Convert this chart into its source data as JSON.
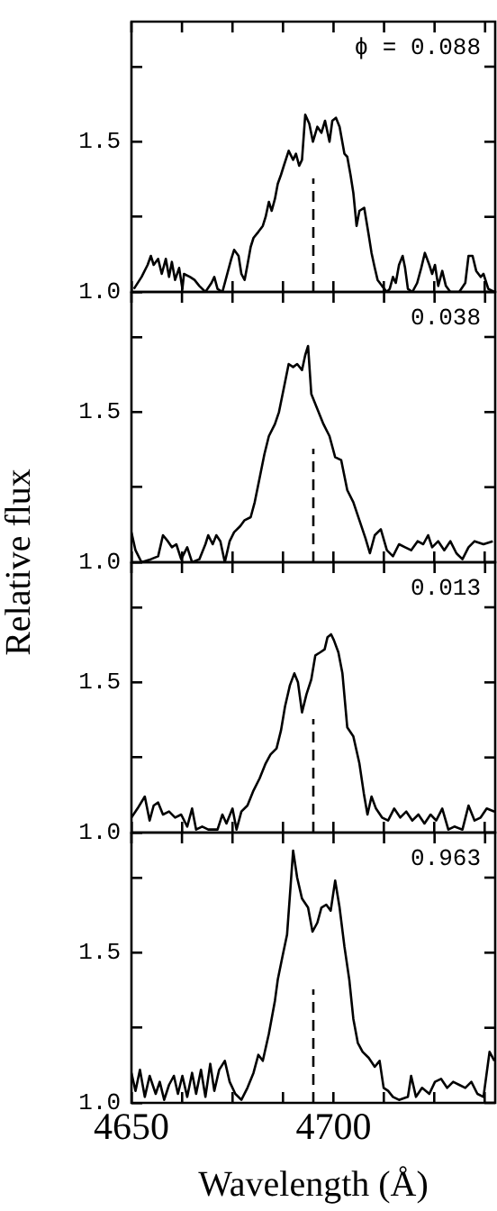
{
  "chart_data": [
    {
      "type": "line",
      "ylabel": "Relative flux",
      "annotations": [
        "ϕ = 0.088"
      ],
      "tick_labels": "y",
      "marker": "none",
      "xlim": [
        4650,
        4740
      ],
      "ylim": [
        1.0,
        1.9
      ],
      "xticks": [
        {
          "value": 4650,
          "label": null
        },
        {
          "value": 4662.5,
          "label": null
        },
        {
          "value": 4675,
          "label": null
        },
        {
          "value": 4687.5,
          "label": null
        },
        {
          "value": 4700,
          "label": null
        },
        {
          "value": 4712.5,
          "label": null
        },
        {
          "value": 4725,
          "label": null
        },
        {
          "value": 4737.5,
          "label": null
        }
      ],
      "yticks": [
        {
          "value": 1.0,
          "label": "1.0"
        },
        {
          "value": 1.25,
          "label": null
        },
        {
          "value": 1.5,
          "label": "1.5"
        },
        {
          "value": 1.75,
          "label": null
        }
      ],
      "ref_lines": [
        {
          "axis": "x",
          "value": 4695,
          "color": "#000000",
          "line_style": "dashed"
        }
      ],
      "x": [
        4650.6,
        4652.5,
        4654.0,
        4654.8,
        4655.5,
        4656.6,
        4657.5,
        4658.5,
        4659.3,
        4660.0,
        4660.8,
        4661.8,
        4662.6,
        4663.0,
        4664.5,
        4665.6,
        4666.8,
        4668.3,
        4669.8,
        4670.5,
        4671.3,
        4672.5,
        4673.5,
        4674.7,
        4675.4,
        4676.5,
        4677.2,
        4678.0,
        4678.7,
        4679.5,
        4680.2,
        4681.4,
        4682.5,
        4683.2,
        4684.0,
        4684.7,
        4685.5,
        4686.2,
        4687.0,
        4687.7,
        4688.9,
        4690.0,
        4690.7,
        4691.5,
        4692.2,
        4693.0,
        4694.0,
        4694.9,
        4696.0,
        4697.0,
        4697.9,
        4699.0,
        4699.7,
        4700.6,
        4701.5,
        4702.7,
        4703.4,
        4704.2,
        4704.9,
        4705.7,
        4706.4,
        4707.6,
        4708.7,
        4709.4,
        4710.2,
        4710.9,
        4712.0,
        4713.2,
        4713.9,
        4714.7,
        4715.4,
        4716.2,
        4717.1,
        4717.7,
        4718.4,
        4719.5,
        4720.7,
        4721.7,
        4722.6,
        4723.7,
        4724.4,
        4725.1,
        4725.9,
        4726.9,
        4727.8,
        4728.9,
        4731.1,
        4732.6,
        4733.4,
        4734.4,
        4735.3,
        4736.4,
        4737.1,
        4738.3,
        4739.8
      ],
      "series": [
        {
          "color": "#000000",
          "values": [
            1.01,
            1.05,
            1.09,
            1.12,
            1.09,
            1.11,
            1.06,
            1.11,
            1.05,
            1.1,
            1.04,
            1.08,
            1.01,
            1.06,
            1.05,
            1.04,
            1.02,
            1.0,
            1.03,
            1.05,
            1.01,
            1.0,
            1.05,
            1.11,
            1.14,
            1.12,
            1.06,
            1.04,
            1.09,
            1.15,
            1.18,
            1.2,
            1.22,
            1.25,
            1.3,
            1.27,
            1.31,
            1.36,
            1.39,
            1.42,
            1.47,
            1.44,
            1.46,
            1.42,
            1.44,
            1.59,
            1.56,
            1.5,
            1.55,
            1.53,
            1.57,
            1.5,
            1.57,
            1.58,
            1.55,
            1.46,
            1.45,
            1.39,
            1.33,
            1.22,
            1.27,
            1.28,
            1.19,
            1.13,
            1.08,
            1.04,
            1.02,
            1.0,
            1.01,
            1.05,
            1.03,
            1.09,
            1.12,
            1.08,
            1.01,
            1.0,
            1.03,
            1.08,
            1.13,
            1.09,
            1.06,
            1.09,
            1.02,
            1.07,
            1.02,
            1.0,
            1.0,
            1.03,
            1.12,
            1.12,
            1.07,
            1.05,
            1.06,
            1.01,
            1.0
          ]
        }
      ]
    },
    {
      "type": "line",
      "annotations": [
        "0.038"
      ],
      "tick_labels": "y",
      "marker": "none",
      "xlim": [
        4650,
        4740
      ],
      "ylim": [
        1.0,
        1.9
      ],
      "xticks": [
        {
          "value": 4650,
          "label": null
        },
        {
          "value": 4662.5,
          "label": null
        },
        {
          "value": 4675,
          "label": null
        },
        {
          "value": 4687.5,
          "label": null
        },
        {
          "value": 4700,
          "label": null
        },
        {
          "value": 4712.5,
          "label": null
        },
        {
          "value": 4725,
          "label": null
        },
        {
          "value": 4737.5,
          "label": null
        }
      ],
      "yticks": [
        {
          "value": 1.0,
          "label": "1.0"
        },
        {
          "value": 1.25,
          "label": null
        },
        {
          "value": 1.5,
          "label": "1.5"
        },
        {
          "value": 1.75,
          "label": null
        }
      ],
      "ref_lines": [
        {
          "axis": "x",
          "value": 4695,
          "color": "#000000",
          "line_style": "dashed"
        }
      ],
      "x": [
        4650.0,
        4651.0,
        4652.5,
        4654.8,
        4656.6,
        4657.8,
        4659.0,
        4660.0,
        4661.1,
        4662.3,
        4663.8,
        4665.0,
        4666.8,
        4668.3,
        4669.0,
        4670.1,
        4671.0,
        4672.0,
        4673.1,
        4674.3,
        4675.4,
        4676.9,
        4678.0,
        4679.5,
        4680.5,
        4681.7,
        4682.9,
        4684.0,
        4685.5,
        4686.5,
        4687.7,
        4688.9,
        4690.0,
        4691.0,
        4692.2,
        4693.0,
        4693.7,
        4694.5,
        4696.0,
        4697.5,
        4699.0,
        4700.4,
        4701.9,
        4703.4,
        4704.9,
        4706.4,
        4707.9,
        4709.0,
        4710.2,
        4711.7,
        4713.2,
        4714.7,
        4716.2,
        4717.7,
        4719.2,
        4720.8,
        4722.2,
        4723.4,
        4724.4,
        4725.9,
        4727.4,
        4728.9,
        4730.4,
        4731.9,
        4733.4,
        4734.9,
        4737.1,
        4739.4
      ],
      "series": [
        {
          "color": "#000000",
          "values": [
            1.1,
            1.04,
            1.0,
            1.01,
            1.02,
            1.09,
            1.07,
            1.05,
            1.06,
            1.01,
            1.05,
            1.0,
            1.01,
            1.06,
            1.09,
            1.06,
            1.09,
            1.07,
            1.0,
            1.07,
            1.1,
            1.12,
            1.14,
            1.15,
            1.2,
            1.28,
            1.36,
            1.42,
            1.46,
            1.5,
            1.58,
            1.66,
            1.65,
            1.66,
            1.64,
            1.69,
            1.72,
            1.56,
            1.51,
            1.46,
            1.42,
            1.35,
            1.34,
            1.24,
            1.2,
            1.14,
            1.08,
            1.03,
            1.09,
            1.11,
            1.04,
            1.02,
            1.06,
            1.05,
            1.04,
            1.07,
            1.06,
            1.09,
            1.05,
            1.07,
            1.04,
            1.07,
            1.03,
            1.01,
            1.05,
            1.07,
            1.06,
            1.07
          ]
        }
      ]
    },
    {
      "type": "line",
      "annotations": [
        "0.013"
      ],
      "tick_labels": "y",
      "marker": "none",
      "xlim": [
        4650,
        4740
      ],
      "ylim": [
        1.0,
        1.9
      ],
      "xticks": [
        {
          "value": 4650,
          "label": null
        },
        {
          "value": 4662.5,
          "label": null
        },
        {
          "value": 4675,
          "label": null
        },
        {
          "value": 4687.5,
          "label": null
        },
        {
          "value": 4700,
          "label": null
        },
        {
          "value": 4712.5,
          "label": null
        },
        {
          "value": 4725,
          "label": null
        },
        {
          "value": 4737.5,
          "label": null
        }
      ],
      "yticks": [
        {
          "value": 1.0,
          "label": "1.0"
        },
        {
          "value": 1.25,
          "label": null
        },
        {
          "value": 1.5,
          "label": "1.5"
        },
        {
          "value": 1.75,
          "label": null
        }
      ],
      "ref_lines": [
        {
          "axis": "x",
          "value": 4695,
          "color": "#000000",
          "line_style": "dashed"
        }
      ],
      "x": [
        4650.0,
        4651.5,
        4653.3,
        4654.5,
        4655.5,
        4656.6,
        4657.8,
        4659.3,
        4660.8,
        4662.3,
        4663.8,
        4665.0,
        4666.0,
        4667.5,
        4669.0,
        4671.3,
        4672.5,
        4673.5,
        4675.0,
        4676.0,
        4677.2,
        4678.7,
        4680.2,
        4681.7,
        4683.2,
        4684.4,
        4685.9,
        4687.0,
        4688.0,
        4689.2,
        4690.3,
        4691.2,
        4692.2,
        4693.3,
        4694.5,
        4695.5,
        4696.7,
        4697.8,
        4698.5,
        4699.4,
        4700.1,
        4701.2,
        4702.2,
        4703.4,
        4704.9,
        4706.4,
        4707.5,
        4708.4,
        4709.4,
        4710.5,
        4712.0,
        4713.5,
        4715.0,
        4716.5,
        4718.0,
        4719.5,
        4721.0,
        4722.5,
        4724.0,
        4725.4,
        4726.9,
        4728.4,
        4729.9,
        4731.9,
        4733.4,
        4734.9,
        4736.4,
        4737.9,
        4739.8
      ],
      "series": [
        {
          "color": "#000000",
          "values": [
            1.05,
            1.08,
            1.12,
            1.04,
            1.09,
            1.1,
            1.06,
            1.07,
            1.05,
            1.06,
            1.02,
            1.08,
            1.01,
            1.02,
            1.01,
            1.01,
            1.06,
            1.03,
            1.08,
            1.01,
            1.07,
            1.09,
            1.14,
            1.18,
            1.23,
            1.26,
            1.28,
            1.34,
            1.42,
            1.49,
            1.53,
            1.5,
            1.4,
            1.46,
            1.51,
            1.59,
            1.6,
            1.61,
            1.65,
            1.66,
            1.64,
            1.6,
            1.53,
            1.35,
            1.32,
            1.23,
            1.13,
            1.06,
            1.12,
            1.08,
            1.05,
            1.04,
            1.08,
            1.05,
            1.07,
            1.04,
            1.06,
            1.03,
            1.06,
            1.04,
            1.08,
            1.01,
            1.02,
            1.01,
            1.09,
            1.04,
            1.05,
            1.08,
            1.07
          ]
        }
      ]
    },
    {
      "type": "line",
      "xlabel": "Wavelength (Å)",
      "annotations": [
        "0.963"
      ],
      "marker": "none",
      "xlim": [
        4650,
        4740
      ],
      "ylim": [
        1.0,
        1.9
      ],
      "xticks": [
        {
          "value": 4650,
          "label": "4650"
        },
        {
          "value": 4662.5,
          "label": null
        },
        {
          "value": 4675,
          "label": null
        },
        {
          "value": 4687.5,
          "label": null
        },
        {
          "value": 4700,
          "label": "4700"
        },
        {
          "value": 4712.5,
          "label": null
        },
        {
          "value": 4725,
          "label": null
        },
        {
          "value": 4737.5,
          "label": null
        }
      ],
      "yticks": [
        {
          "value": 1.0,
          "label": "1.0"
        },
        {
          "value": 1.25,
          "label": null
        },
        {
          "value": 1.5,
          "label": "1.5"
        },
        {
          "value": 1.75,
          "label": null
        }
      ],
      "ref_lines": [
        {
          "axis": "x",
          "value": 4695,
          "color": "#000000",
          "line_style": "dashed"
        }
      ],
      "x": [
        4650.0,
        4651.0,
        4652.1,
        4653.3,
        4654.5,
        4656.0,
        4657.0,
        4658.1,
        4659.3,
        4660.5,
        4661.5,
        4662.6,
        4663.8,
        4665.0,
        4666.0,
        4667.2,
        4668.3,
        4669.5,
        4670.5,
        4671.7,
        4673.1,
        4674.3,
        4675.7,
        4677.2,
        4678.7,
        4680.2,
        4681.4,
        4682.5,
        4684.0,
        4685.5,
        4686.2,
        4687.4,
        4688.5,
        4689.2,
        4690.0,
        4691.0,
        4692.2,
        4693.7,
        4694.8,
        4696.0,
        4697.0,
        4698.2,
        4699.3,
        4700.4,
        4701.5,
        4702.7,
        4703.9,
        4704.9,
        4706.0,
        4707.2,
        4708.7,
        4710.2,
        4711.4,
        4712.4,
        4713.5,
        4714.7,
        4716.2,
        4718.4,
        4719.2,
        4720.4,
        4721.9,
        4723.7,
        4725.1,
        4726.6,
        4728.1,
        4729.6,
        4731.1,
        4732.6,
        4734.1,
        4735.6,
        4737.1,
        4738.6,
        4739.8
      ],
      "series": [
        {
          "color": "#000000",
          "values": [
            1.1,
            1.04,
            1.11,
            1.02,
            1.09,
            1.03,
            1.07,
            1.01,
            1.06,
            1.09,
            1.03,
            1.09,
            1.02,
            1.1,
            1.03,
            1.11,
            1.02,
            1.13,
            1.04,
            1.11,
            1.14,
            1.07,
            1.03,
            1.01,
            1.05,
            1.1,
            1.16,
            1.14,
            1.23,
            1.34,
            1.41,
            1.49,
            1.56,
            1.69,
            1.84,
            1.75,
            1.68,
            1.65,
            1.57,
            1.6,
            1.65,
            1.66,
            1.64,
            1.74,
            1.65,
            1.52,
            1.41,
            1.28,
            1.2,
            1.17,
            1.15,
            1.12,
            1.14,
            1.05,
            1.04,
            1.02,
            1.01,
            1.02,
            1.09,
            1.02,
            1.05,
            1.03,
            1.07,
            1.08,
            1.05,
            1.07,
            1.06,
            1.05,
            1.07,
            1.03,
            1.02,
            1.17,
            1.14
          ]
        }
      ]
    }
  ]
}
